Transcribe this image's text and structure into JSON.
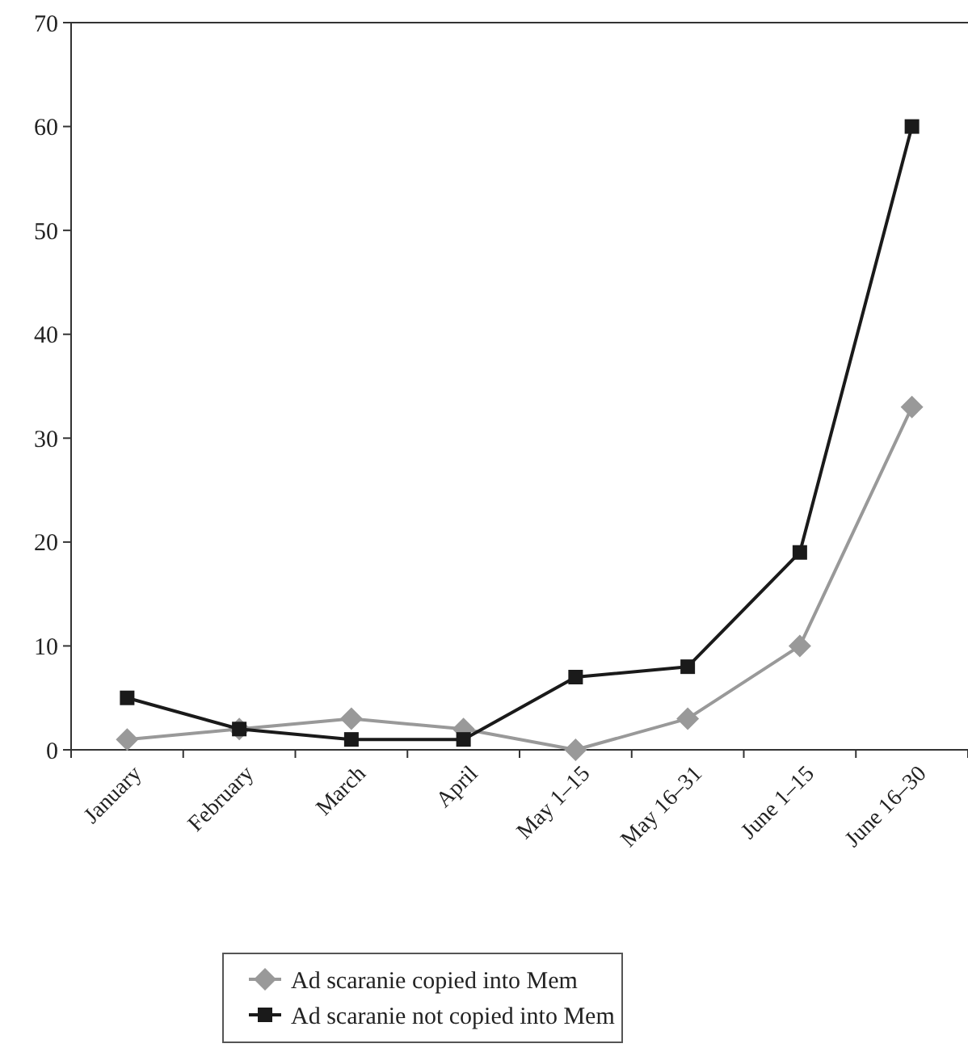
{
  "chart_data": {
    "type": "line",
    "categories": [
      "January",
      "February",
      "March",
      "April",
      "May 1–15",
      "May 16–31",
      "June 1–15",
      "June 16–30"
    ],
    "series": [
      {
        "name": "Ad scaranie copied into Mem",
        "color": "#999999",
        "marker": "diamond",
        "values": [
          1,
          2,
          3,
          2,
          0,
          3,
          10,
          33
        ]
      },
      {
        "name": "Ad scaranie not copied into Mem",
        "color": "#1a1a1a",
        "marker": "square",
        "values": [
          5,
          2,
          1,
          1,
          7,
          8,
          19,
          60
        ]
      }
    ],
    "ylim": [
      0,
      70
    ],
    "yticks": [
      0,
      10,
      20,
      30,
      40,
      50,
      60,
      70
    ],
    "grid": false,
    "legend": "bottom"
  }
}
